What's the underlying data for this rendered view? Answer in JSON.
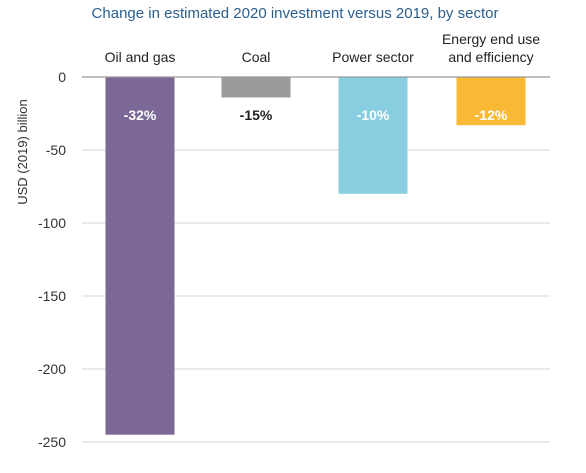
{
  "chart_data": {
    "type": "bar",
    "title": "Change in estimated 2020 investment versus 2019, by sector",
    "ylabel": "USD (2019) billion",
    "xlabel": "",
    "ylim": [
      -250,
      0
    ],
    "yticks": [
      0,
      -50,
      -100,
      -150,
      -200,
      -250
    ],
    "grid": true,
    "categories": [
      [
        "Oil and gas"
      ],
      [
        "Coal"
      ],
      [
        "Power sector"
      ],
      [
        "Energy end use",
        "and efficiency"
      ]
    ],
    "values": [
      -245,
      -14,
      -80,
      -33
    ],
    "percent_labels": [
      "-32%",
      "-15%",
      "-10%",
      "-12%"
    ],
    "colors": [
      "#7b6896",
      "#9a9a9a",
      "#87cfe0",
      "#f9b935"
    ],
    "percent_label_colors": [
      "#ffffff",
      "#222222",
      "#ffffff",
      "#ffffff"
    ]
  }
}
